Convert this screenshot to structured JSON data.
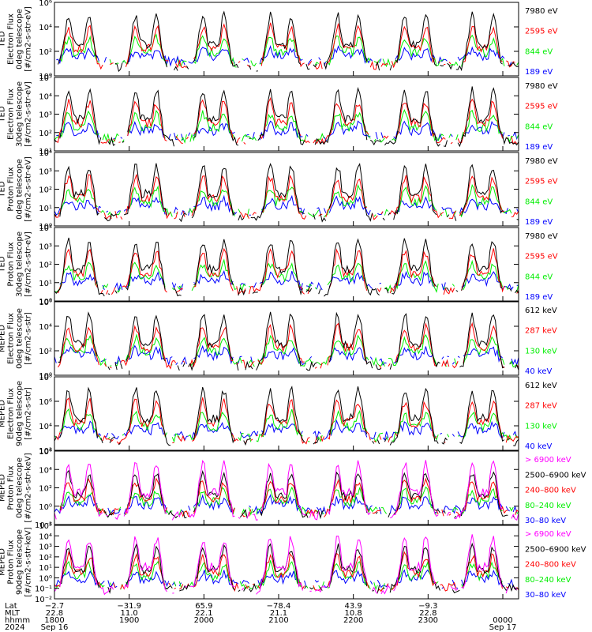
{
  "chart_data": [
    {
      "type": "line",
      "ylabel": [
        "TED",
        "Electron Flux",
        "0deg telescope",
        "[#/cm2-s-str-eV]"
      ],
      "ylim": [
        0,
        6
      ],
      "log_scale": true,
      "yticks": [
        "10⁰",
        "10²",
        "10⁴",
        "10⁶"
      ],
      "tick_values": [
        0,
        2,
        4,
        6
      ],
      "series": [
        {
          "name": "7980 eV",
          "color": "#000000"
        },
        {
          "name": "2595 eV",
          "color": "#ff0000"
        },
        {
          "name": "844 eV",
          "color": "#00ee00"
        },
        {
          "name": "189 eV",
          "color": "#0000ff"
        }
      ]
    },
    {
      "type": "line",
      "ylabel": [
        "TED",
        "Electron Flux",
        "30deg telescope",
        "[#/cm2-s-str-eV]"
      ],
      "ylim": [
        1,
        5
      ],
      "log_scale": true,
      "yticks": [
        "10¹",
        "10²",
        "10³",
        "10⁴",
        "10⁵"
      ],
      "tick_values": [
        1,
        2,
        3,
        4,
        5
      ],
      "series": [
        {
          "name": "7980 eV",
          "color": "#000000"
        },
        {
          "name": "2595 eV",
          "color": "#ff0000"
        },
        {
          "name": "844 eV",
          "color": "#00ee00"
        },
        {
          "name": "189 eV",
          "color": "#0000ff"
        }
      ]
    },
    {
      "type": "line",
      "ylabel": [
        "TED",
        "Proton Flux",
        "0deg telescope",
        "[#/cm2-s-str-eV]"
      ],
      "ylim": [
        0,
        4
      ],
      "log_scale": true,
      "yticks": [
        "10⁰",
        "10¹",
        "10²",
        "10³",
        "10⁴"
      ],
      "tick_values": [
        0,
        1,
        2,
        3,
        4
      ],
      "series": [
        {
          "name": "7980 eV",
          "color": "#000000"
        },
        {
          "name": "2595 eV",
          "color": "#ff0000"
        },
        {
          "name": "844 eV",
          "color": "#00ee00"
        },
        {
          "name": "189 eV",
          "color": "#0000ff"
        }
      ]
    },
    {
      "type": "line",
      "ylabel": [
        "TED",
        "Proton Flux",
        "30deg telescope",
        "[#/cm2-s-str-eV]"
      ],
      "ylim": [
        0,
        4
      ],
      "log_scale": true,
      "yticks": [
        "10⁰",
        "10¹",
        "10²",
        "10³",
        "10⁴"
      ],
      "tick_values": [
        0,
        1,
        2,
        3,
        4
      ],
      "series": [
        {
          "name": "7980 eV",
          "color": "#000000"
        },
        {
          "name": "2595 eV",
          "color": "#ff0000"
        },
        {
          "name": "844 eV",
          "color": "#00ee00"
        },
        {
          "name": "189 eV",
          "color": "#0000ff"
        }
      ]
    },
    {
      "type": "line",
      "ylabel": [
        "MEPED",
        "Electron Flux",
        "0deg telescope",
        "[#/cm2-s-str]"
      ],
      "ylim": [
        0,
        6
      ],
      "log_scale": true,
      "yticks": [
        "10⁰",
        "10²",
        "10⁴",
        "10⁶"
      ],
      "tick_values": [
        0,
        2,
        4,
        6
      ],
      "series": [
        {
          "name": "612 keV",
          "color": "#000000"
        },
        {
          "name": "287 keV",
          "color": "#ff0000"
        },
        {
          "name": "130 keV",
          "color": "#00ee00"
        },
        {
          "name": "40 keV",
          "color": "#0000ff"
        }
      ]
    },
    {
      "type": "line",
      "ylabel": [
        "MEPED",
        "Electron Flux",
        "90deg telescope",
        "[#/cm2-s-str]"
      ],
      "ylim": [
        2,
        8
      ],
      "log_scale": true,
      "yticks": [
        "10²",
        "10⁴",
        "10⁶",
        "10⁸"
      ],
      "tick_values": [
        2,
        4,
        6,
        8
      ],
      "series": [
        {
          "name": "612 keV",
          "color": "#000000"
        },
        {
          "name": "287 keV",
          "color": "#ff0000"
        },
        {
          "name": "130 keV",
          "color": "#00ee00"
        },
        {
          "name": "40 keV",
          "color": "#0000ff"
        }
      ]
    },
    {
      "type": "line",
      "ylabel": [
        "MEPED",
        "Proton Flux",
        "0deg telescope",
        "[#/cm2-s-str-keV]"
      ],
      "ylim": [
        -2,
        6
      ],
      "log_scale": true,
      "yticks": [
        "10⁻²",
        "10⁰",
        "10²",
        "10⁴",
        "10⁶"
      ],
      "tick_values": [
        -2,
        0,
        2,
        4,
        6
      ],
      "series": [
        {
          "name": "> 6900 keV",
          "color": "#ff00ff"
        },
        {
          "name": "2500–6900 keV",
          "color": "#000000"
        },
        {
          "name": "240–800 keV",
          "color": "#ff0000"
        },
        {
          "name": "80–240 keV",
          "color": "#00ee00"
        },
        {
          "name": "30–80 keV",
          "color": "#0000ff"
        }
      ]
    },
    {
      "type": "line",
      "ylabel": [
        "MEPED",
        "Proton Flux",
        "90deg telescope",
        "[#/cm2-s-str-keV]"
      ],
      "ylim": [
        -2,
        5
      ],
      "log_scale": true,
      "yticks": [
        "10⁻²",
        "10⁻¹",
        "10⁰",
        "10¹",
        "10²",
        "10³",
        "10⁴",
        "10⁵"
      ],
      "tick_values": [
        -2,
        -1,
        0,
        1,
        2,
        3,
        4,
        5
      ],
      "series": [
        {
          "name": "> 6900 keV",
          "color": "#ff00ff"
        },
        {
          "name": "2500–6900 keV",
          "color": "#000000"
        },
        {
          "name": "240–800 keV",
          "color": "#ff0000"
        },
        {
          "name": "80–240 keV",
          "color": "#00ee00"
        },
        {
          "name": "30–80 keV",
          "color": "#0000ff"
        }
      ]
    }
  ],
  "x_axis": {
    "row_labels": [
      "Lat",
      "MLT",
      "hhmm",
      "2024"
    ],
    "columns": [
      {
        "lat": "−2.7",
        "mlt": "22.8",
        "hhmm": "1800",
        "date": "Sep 16"
      },
      {
        "lat": "−31.9",
        "mlt": "11.0",
        "hhmm": "1900",
        "date": ""
      },
      {
        "lat": "65.9",
        "mlt": "22.1",
        "hhmm": "2000",
        "date": ""
      },
      {
        "lat": "−78.4",
        "mlt": "21.1",
        "hhmm": "2100",
        "date": ""
      },
      {
        "lat": "43.9",
        "mlt": "10.8",
        "hhmm": "2200",
        "date": ""
      },
      {
        "lat": "−9.3",
        "mlt": "22.8",
        "hhmm": "2300",
        "date": ""
      },
      {
        "lat": "",
        "mlt": "",
        "hhmm": "0000",
        "date": "Sep 17"
      }
    ]
  }
}
